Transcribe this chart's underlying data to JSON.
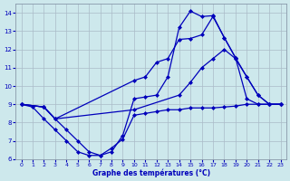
{
  "title": "Graphe des températures (°C)",
  "bg_color": "#cde8ec",
  "grid_color": "#aabbc8",
  "line_color": "#0000bb",
  "xlim": [
    -0.5,
    23.5
  ],
  "ylim": [
    6,
    14.5
  ],
  "xticks": [
    0,
    1,
    2,
    3,
    4,
    5,
    6,
    7,
    8,
    9,
    10,
    11,
    12,
    13,
    14,
    15,
    16,
    17,
    18,
    19,
    20,
    21,
    22,
    23
  ],
  "yticks": [
    6,
    7,
    8,
    9,
    10,
    11,
    12,
    13,
    14
  ],
  "line1_x": [
    0,
    1,
    2,
    3,
    4,
    5,
    6,
    7,
    8,
    9,
    10,
    11,
    12,
    13,
    14,
    15,
    16,
    17,
    18,
    19,
    20,
    21,
    22,
    23
  ],
  "line1_y": [
    9.0,
    8.85,
    8.2,
    7.6,
    7.0,
    6.4,
    6.2,
    6.2,
    6.6,
    7.1,
    8.4,
    8.5,
    8.6,
    8.7,
    8.7,
    8.8,
    8.8,
    8.8,
    8.85,
    8.9,
    9.0,
    9.0,
    9.0,
    9.0
  ],
  "line2_x": [
    0,
    2,
    3,
    4,
    5,
    6,
    7,
    8,
    9,
    10,
    11,
    12,
    13,
    14,
    15,
    16,
    17,
    18,
    19,
    20,
    21,
    22,
    23
  ],
  "line2_y": [
    9.0,
    8.85,
    8.2,
    7.6,
    7.0,
    6.4,
    6.2,
    6.4,
    7.3,
    9.3,
    9.4,
    9.5,
    10.5,
    13.2,
    14.1,
    13.8,
    13.85,
    12.65,
    11.55,
    10.5,
    9.5,
    9.0,
    9.0
  ],
  "line3_x": [
    0,
    2,
    3,
    10,
    11,
    12,
    13,
    14,
    15,
    16,
    17,
    18,
    19,
    20,
    21,
    22,
    23
  ],
  "line3_y": [
    9.0,
    8.85,
    8.2,
    10.3,
    10.5,
    11.3,
    11.5,
    12.55,
    12.6,
    12.8,
    13.8,
    12.65,
    11.55,
    9.3,
    9.0,
    9.0,
    9.0
  ],
  "line4_x": [
    0,
    2,
    3,
    10,
    14,
    15,
    16,
    17,
    18,
    19,
    20,
    21,
    22,
    23
  ],
  "line4_y": [
    9.0,
    8.85,
    8.2,
    8.7,
    9.5,
    10.2,
    11.0,
    11.5,
    12.0,
    11.5,
    10.5,
    9.5,
    9.0,
    9.0
  ]
}
